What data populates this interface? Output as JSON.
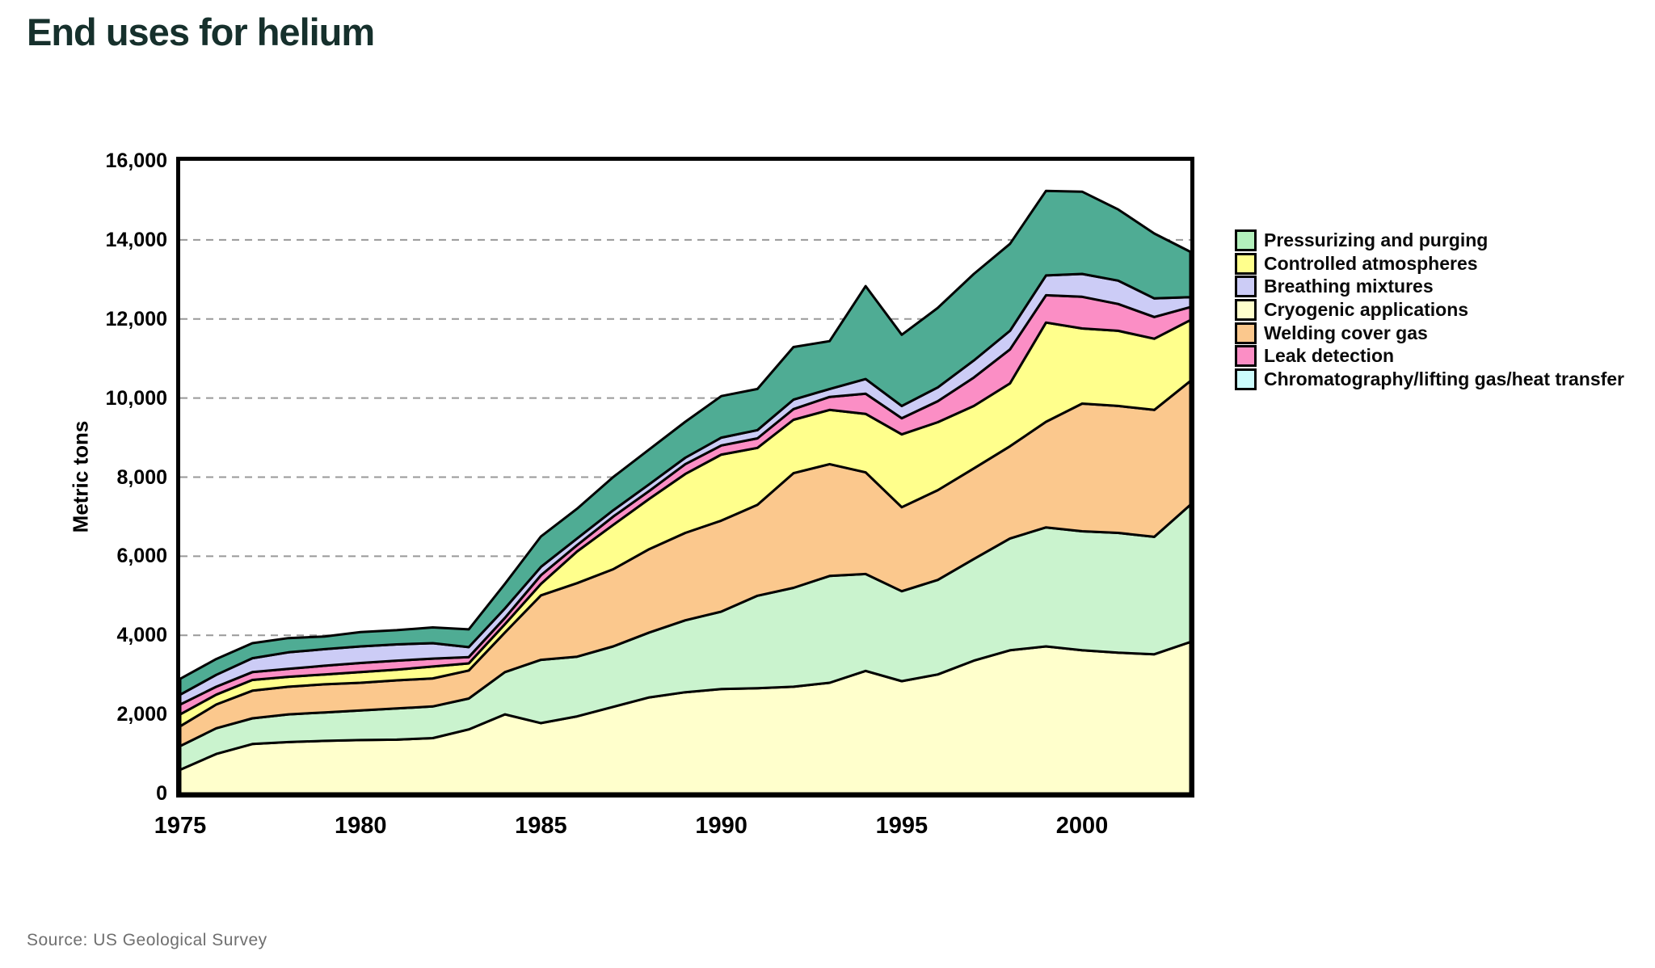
{
  "title": "End uses for helium",
  "source": "Source: US Geological Survey",
  "y_axis": {
    "label": "Metric tons",
    "min": 0,
    "max": 16000,
    "tick_interval": 2000,
    "ticks": [
      "0",
      "2,000",
      "4,000",
      "6,000",
      "8,000",
      "10,000",
      "12,000",
      "14,000",
      "16,000"
    ],
    "gridlines": "dashed",
    "gridline_color": "#999999"
  },
  "x_axis": {
    "start_year": 1975,
    "end_year": 2003,
    "ticks": [
      "1975",
      "1980",
      "1985",
      "1990",
      "1995",
      "2000"
    ]
  },
  "chart_data": {
    "type": "area",
    "stacked": true,
    "title": "End uses for helium",
    "ylabel": "Metric tons",
    "ylim": [
      0,
      16000
    ],
    "legend_position": "right",
    "years": [
      1975,
      1976,
      1977,
      1978,
      1979,
      1980,
      1981,
      1982,
      1983,
      1984,
      1985,
      1986,
      1987,
      1988,
      1989,
      1990,
      1991,
      1992,
      1993,
      1994,
      1995,
      1996,
      1997,
      1998,
      1999,
      2000,
      2001,
      2002,
      2003
    ],
    "series": [
      {
        "name": "Cryogenic applications",
        "color": "#FFFFCC",
        "values": [
          600,
          1000,
          1250,
          1300,
          1330,
          1350,
          1360,
          1400,
          1620,
          2000,
          1780,
          1950,
          2190,
          2430,
          2560,
          2640,
          2660,
          2700,
          2800,
          3100,
          2840,
          3010,
          3360,
          3620,
          3720,
          3620,
          3560,
          3520,
          3830
        ]
      },
      {
        "name": "Pressurizing and purging",
        "color": "#CAF3CE",
        "values": [
          600,
          650,
          650,
          700,
          720,
          750,
          790,
          800,
          780,
          1070,
          1600,
          1510,
          1530,
          1640,
          1820,
          1960,
          2340,
          2500,
          2700,
          2450,
          2275,
          2390,
          2570,
          2830,
          3010,
          3010,
          3030,
          2970,
          3470
        ]
      },
      {
        "name": "Welding cover gas",
        "color": "#FBC88D",
        "values": [
          500,
          600,
          700,
          700,
          710,
          700,
          710,
          710,
          710,
          1000,
          1630,
          1860,
          1950,
          2110,
          2210,
          2300,
          2300,
          2900,
          2830,
          2570,
          2125,
          2270,
          2290,
          2330,
          2670,
          3230,
          3210,
          3210,
          3130
        ]
      },
      {
        "name": "Controlled atmospheres",
        "color": "#FFFF8C",
        "values": [
          300,
          250,
          270,
          250,
          250,
          270,
          270,
          300,
          180,
          210,
          290,
          800,
          1120,
          1270,
          1490,
          1670,
          1440,
          1350,
          1370,
          1480,
          1840,
          1720,
          1580,
          1590,
          2510,
          1900,
          1900,
          1800,
          1540
        ]
      },
      {
        "name": "Leak detection",
        "color": "#FB8EC5",
        "values": [
          250,
          200,
          200,
          200,
          220,
          230,
          230,
          200,
          160,
          160,
          220,
          160,
          210,
          200,
          250,
          230,
          240,
          270,
          330,
          510,
          410,
          530,
          720,
          860,
          690,
          800,
          680,
          550,
          330
        ]
      },
      {
        "name": "Breathing mixtures",
        "color": "#CCCCF6",
        "values": [
          250,
          300,
          350,
          420,
          420,
          420,
          410,
          390,
          250,
          240,
          210,
          170,
          160,
          170,
          160,
          200,
          210,
          240,
          200,
          370,
          310,
          350,
          430,
          470,
          500,
          580,
          590,
          470,
          250
        ]
      },
      {
        "name": "Chromatography/lifting gas/heat transfer",
        "color": "#4FAC94",
        "values": [
          400,
          400,
          380,
          360,
          320,
          360,
          360,
          400,
          450,
          620,
          770,
          750,
          840,
          880,
          910,
          1050,
          1040,
          1330,
          1210,
          2350,
          1800,
          2010,
          2190,
          2200,
          2140,
          2080,
          1800,
          1640,
          1150
        ]
      }
    ],
    "legend": [
      {
        "label": "Pressurizing and purging",
        "color": "#B3F0BC"
      },
      {
        "label": "Controlled atmospheres",
        "color": "#FFFF8C"
      },
      {
        "label": "Breathing mixtures",
        "color": "#CCCCF6"
      },
      {
        "label": "Cryogenic applications",
        "color": "#FFFFCC"
      },
      {
        "label": "Welding cover gas",
        "color": "#FBC88D"
      },
      {
        "label": "Leak detection",
        "color": "#FB8EC5"
      },
      {
        "label": "Chromatography/lifting gas/heat transfer",
        "color": "#CCFCFC"
      }
    ]
  }
}
